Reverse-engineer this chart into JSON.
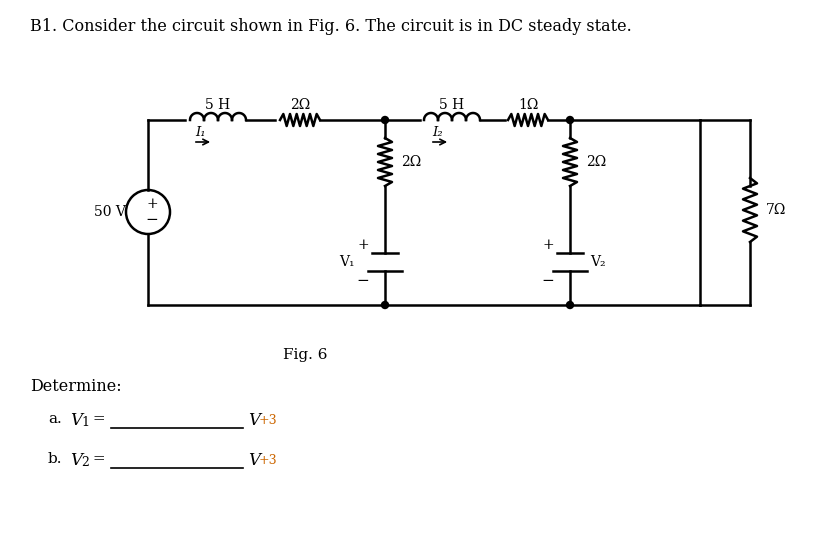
{
  "title": "B1. Consider the circuit shown in Fig. 6. The circuit is in DC steady state.",
  "fig_label": "Fig. 6",
  "determine_text": "Determine:",
  "part_a": "a.   V",
  "part_a_sub": "1",
  "part_a_eq": " =",
  "part_b": "b.   V",
  "part_b_sub": "2",
  "part_b_eq": " =",
  "unit": "V",
  "marks": "+3",
  "background": "#ffffff",
  "line_color": "#000000",
  "marks_color": "#cc6600",
  "font_size_title": 11.5,
  "font_size_component": 10,
  "font_size_label": 11
}
